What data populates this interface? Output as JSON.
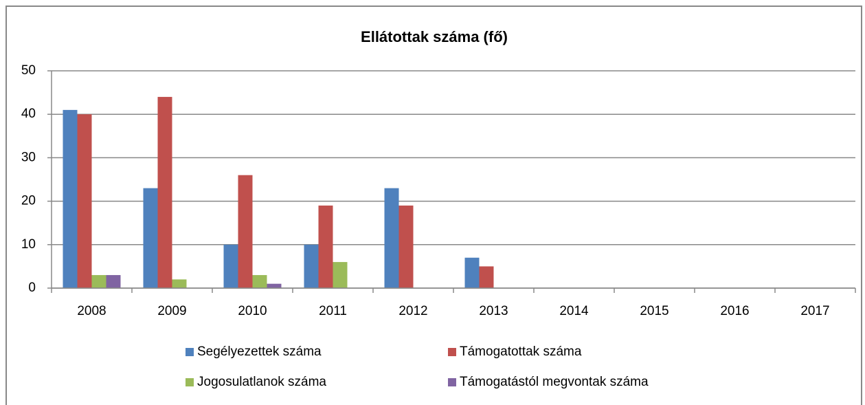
{
  "chart_data": {
    "type": "bar",
    "title": "Ellátottak száma (fő)",
    "categories": [
      "2008",
      "2009",
      "2010",
      "2011",
      "2012",
      "2013",
      "2014",
      "2015",
      "2016",
      "2017"
    ],
    "series": [
      {
        "name": "Segélyezettek száma",
        "color": "#4f81bd",
        "values": [
          41,
          23,
          10,
          10,
          23,
          7,
          0,
          0,
          0,
          0
        ]
      },
      {
        "name": "Támogatottak száma",
        "color": "#c0504d",
        "values": [
          40,
          44,
          26,
          19,
          19,
          5,
          0,
          0,
          0,
          0
        ]
      },
      {
        "name": "Jogosulatlanok száma",
        "color": "#9bbb59",
        "values": [
          3,
          2,
          3,
          6,
          0,
          0,
          0,
          0,
          0,
          0
        ]
      },
      {
        "name": "Támogatástól megvontak száma",
        "color": "#8064a2",
        "values": [
          3,
          0,
          1,
          0,
          0,
          0,
          0,
          0,
          0,
          0
        ]
      }
    ],
    "ylim": [
      0,
      50
    ],
    "yticks": [
      0,
      10,
      20,
      30,
      40,
      50
    ],
    "grid": true,
    "legend": "bottom"
  }
}
